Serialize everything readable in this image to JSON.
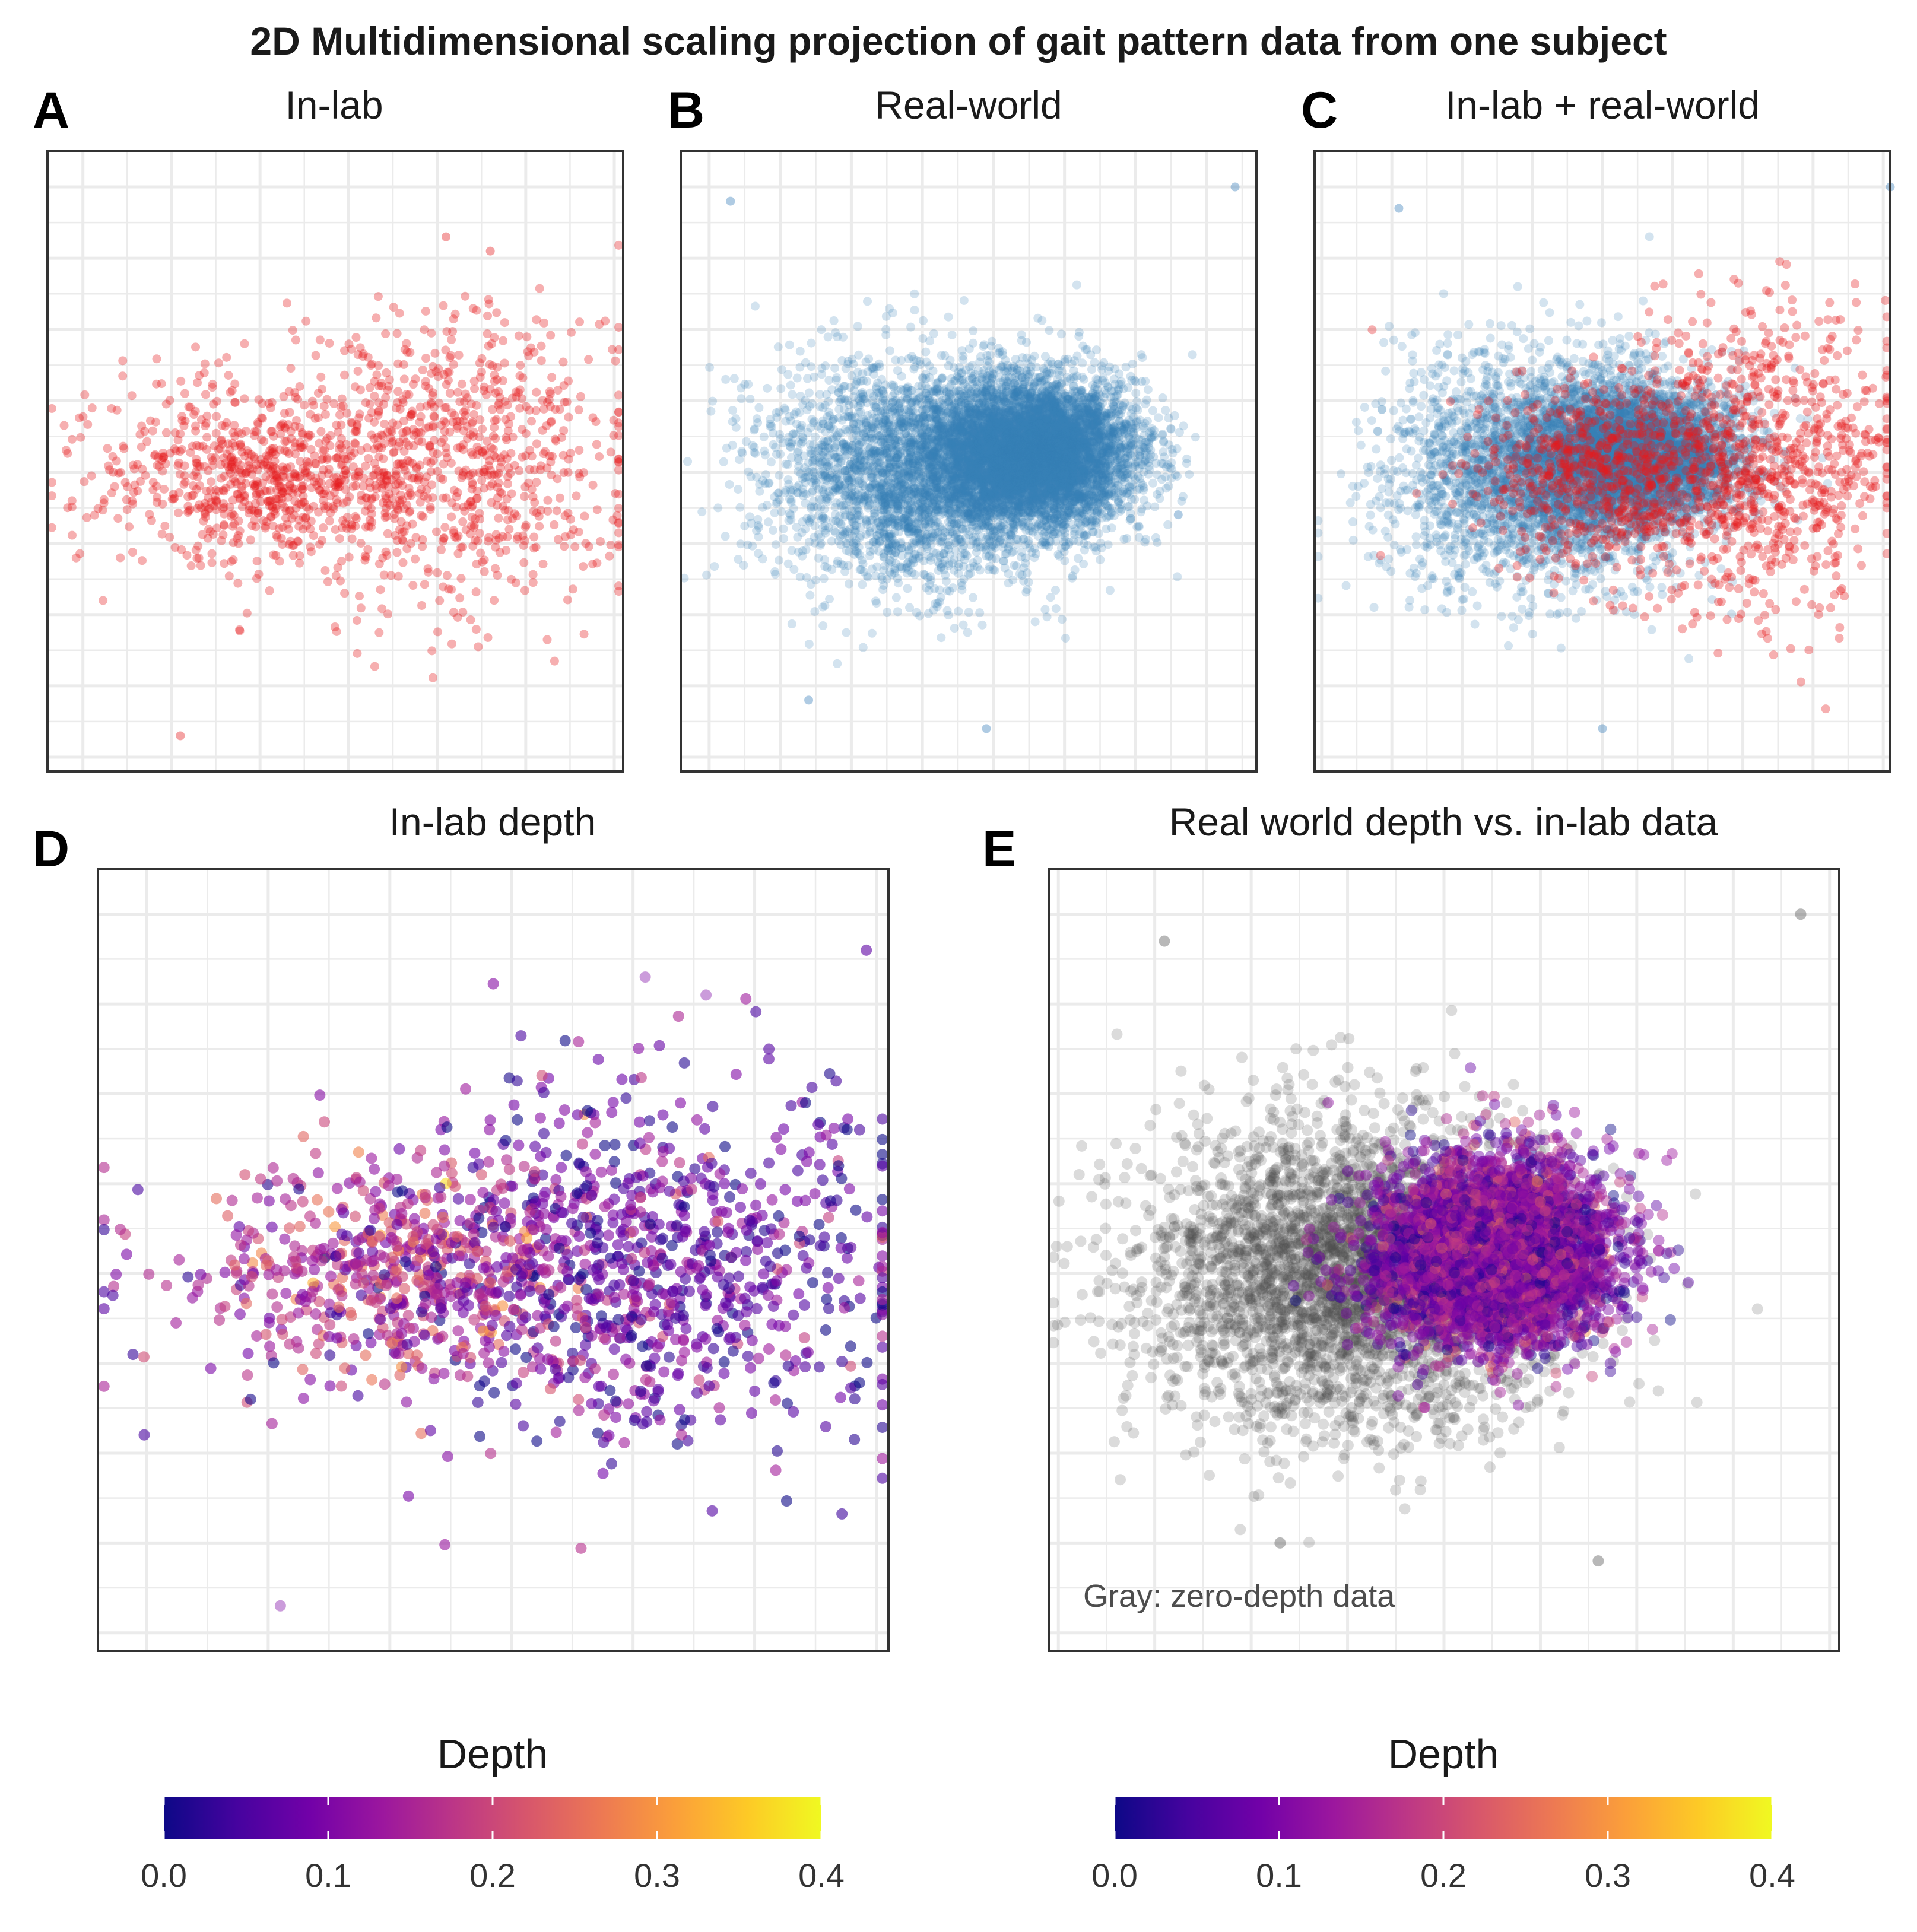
{
  "figure": {
    "title": "2D Multidimensional scaling projection of gait pattern data from one subject"
  },
  "colors": {
    "in_lab": "#e41a1c",
    "real_world": "#377eb8",
    "zero_depth": "#4d4d4d",
    "plasma": [
      "#0d0887",
      "#46039f",
      "#7201a8",
      "#9c179e",
      "#bd3786",
      "#d8576b",
      "#ed7953",
      "#fb9f3a",
      "#fdca26",
      "#f0f921"
    ]
  },
  "chart_data": [
    {
      "id": "A",
      "type": "scatter",
      "letter": "A",
      "title": "In-lab",
      "series": [
        {
          "name": "in-lab",
          "color": "#e41a1c",
          "n": 1500,
          "clusters": [
            {
              "cx": 0.0,
              "cy": 0.0,
              "sx": 0.9,
              "sy": 0.6,
              "w": 0.45
            },
            {
              "cx": 2.2,
              "cy": 0.1,
              "sx": 1.0,
              "sy": 1.05,
              "w": 0.55
            }
          ]
        }
      ],
      "outliers": [
        [
          -0.9,
          -3.7
        ],
        [
          2.1,
          3.3
        ],
        [
          2.6,
          3.1
        ]
      ],
      "xlim": [
        -2.4,
        4.1
      ],
      "ylim": [
        -4.2,
        4.5
      ],
      "grid": true
    },
    {
      "id": "B",
      "type": "scatter",
      "letter": "B",
      "title": "Real-world",
      "series": [
        {
          "name": "real-world",
          "color": "#377eb8",
          "n": 9000,
          "clusters": [
            {
              "cx": 0.0,
              "cy": 0.0,
              "sx": 1.05,
              "sy": 0.8,
              "w": 0.35
            },
            {
              "cx": 1.6,
              "cy": 0.25,
              "sx": 0.7,
              "sy": 0.5,
              "w": 0.65
            }
          ]
        }
      ],
      "outliers": [
        [
          4.4,
          4.0
        ],
        [
          -2.7,
          3.8
        ],
        [
          0.9,
          -3.6
        ],
        [
          -1.6,
          -3.2
        ],
        [
          3.6,
          -0.6
        ]
      ],
      "xlim": [
        -3.4,
        4.7
      ],
      "ylim": [
        -4.2,
        4.5
      ],
      "grid": true
    },
    {
      "id": "C",
      "type": "scatter",
      "letter": "C",
      "title": "In-lab + real-world",
      "series": [
        {
          "name": "real-world",
          "color": "#377eb8",
          "n": 6500,
          "clusters": [
            {
              "cx": -0.9,
              "cy": 0.0,
              "sx": 1.05,
              "sy": 0.8,
              "w": 0.4
            },
            {
              "cx": 0.5,
              "cy": 0.25,
              "sx": 0.75,
              "sy": 0.5,
              "w": 0.6
            }
          ]
        },
        {
          "name": "in-lab",
          "color": "#e41a1c",
          "n": 1500,
          "clusters": [
            {
              "cx": 0.0,
              "cy": 0.0,
              "sx": 0.9,
              "sy": 0.6,
              "w": 0.45
            },
            {
              "cx": 2.2,
              "cy": 0.1,
              "sx": 1.0,
              "sy": 1.05,
              "w": 0.55
            }
          ]
        }
      ],
      "outliers": [
        [
          4.1,
          4.0
        ],
        [
          -2.9,
          3.7
        ],
        [
          0.0,
          -3.6
        ]
      ],
      "xlim": [
        -4.1,
        4.1
      ],
      "ylim": [
        -4.2,
        4.5
      ],
      "grid": true
    },
    {
      "id": "D",
      "type": "scatter",
      "letter": "D",
      "title": "In-lab depth",
      "color_scale": {
        "name": "plasma",
        "min": 0.0,
        "max": 0.4
      },
      "series": [
        {
          "name": "in-lab depth",
          "n": 1500,
          "clusters": [
            {
              "cx": 0.0,
              "cy": 0.0,
              "sx": 0.9,
              "sy": 0.6,
              "w": 0.45,
              "depth_mean": 0.17
            },
            {
              "cx": 2.2,
              "cy": 0.1,
              "sx": 1.0,
              "sy": 1.05,
              "w": 0.55,
              "depth_mean": 0.09
            }
          ]
        }
      ],
      "outliers": [
        [
          -0.9,
          -3.7
        ],
        [
          2.1,
          3.3
        ],
        [
          2.6,
          3.1
        ]
      ],
      "xlim": [
        -2.4,
        4.1
      ],
      "ylim": [
        -4.2,
        4.5
      ],
      "grid": true
    },
    {
      "id": "E",
      "type": "scatter",
      "letter": "E",
      "title": "Real world depth vs. in-lab data",
      "note": "Gray: zero-depth data",
      "color_scale": {
        "name": "plasma",
        "min": 0.0,
        "max": 0.4
      },
      "series": [
        {
          "name": "zero-depth",
          "color": "#4d4d4d",
          "n": 3500,
          "clusters": [
            {
              "cx": -1.0,
              "cy": 0.0,
              "sx": 1.05,
              "sy": 0.85,
              "w": 1.0
            }
          ]
        },
        {
          "name": "real-world depth",
          "n": 5000,
          "clusters": [
            {
              "cx": 0.55,
              "cy": 0.25,
              "sx": 0.6,
              "sy": 0.5,
              "w": 1.0,
              "depth_mean": 0.12
            }
          ]
        }
      ],
      "outliers": [
        [
          3.7,
          4.0
        ],
        [
          -2.9,
          3.7
        ],
        [
          1.6,
          -3.2
        ],
        [
          -1.7,
          -3.0
        ]
      ],
      "xlim": [
        -4.1,
        4.1
      ],
      "ylim": [
        -4.2,
        4.5
      ],
      "grid": true
    }
  ],
  "legends": [
    {
      "id": "D",
      "title": "Depth",
      "ticks": [
        "0.0",
        "0.1",
        "0.2",
        "0.3",
        "0.4"
      ]
    },
    {
      "id": "E",
      "title": "Depth",
      "ticks": [
        "0.0",
        "0.1",
        "0.2",
        "0.3",
        "0.4"
      ]
    }
  ]
}
